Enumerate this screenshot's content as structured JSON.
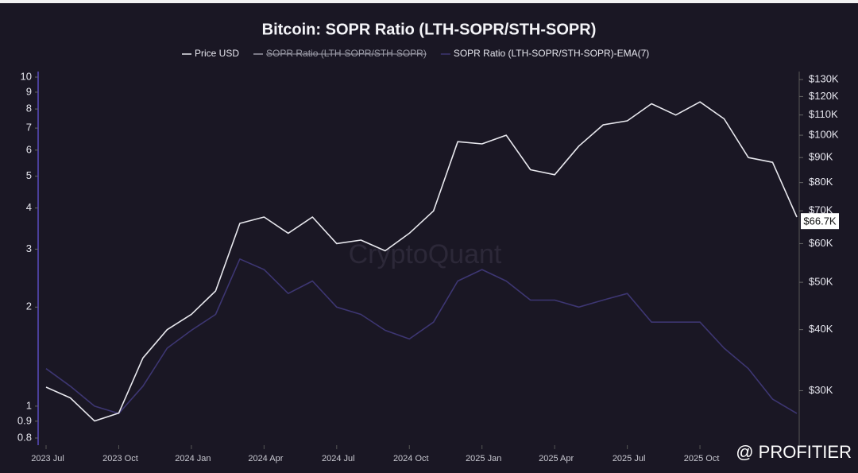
{
  "chart_data": {
    "type": "line",
    "title": "Bitcoin: SOPR Ratio (LTH-SOPR/STH-SOPR)",
    "x": [
      "2023-07",
      "2023-08",
      "2023-09",
      "2023-10",
      "2023-11",
      "2023-12",
      "2024-01",
      "2024-02",
      "2024-03",
      "2024-04",
      "2024-05",
      "2024-06",
      "2024-07",
      "2024-08",
      "2024-09",
      "2024-10",
      "2024-11",
      "2024-12",
      "2025-01",
      "2025-02",
      "2025-03",
      "2025-04",
      "2025-05",
      "2025-06",
      "2025-07",
      "2025-08",
      "2025-09",
      "2025-10",
      "2025-11",
      "2025-12",
      "2026-01",
      "2026-02"
    ],
    "xlim": [
      "2023-07",
      "2026-02"
    ],
    "xticks": [
      {
        "value": "2023-07",
        "label": "2023 Jul"
      },
      {
        "value": "2023-10",
        "label": "2023 Oct"
      },
      {
        "value": "2024-01",
        "label": "2024 Jan"
      },
      {
        "value": "2024-04",
        "label": "2024 Apr"
      },
      {
        "value": "2024-07",
        "label": "2024 Jul"
      },
      {
        "value": "2024-10",
        "label": "2024 Oct"
      },
      {
        "value": "2025-01",
        "label": "2025 Jan"
      },
      {
        "value": "2025-04",
        "label": "2025 Apr"
      },
      {
        "value": "2025-07",
        "label": "2025 Jul"
      },
      {
        "value": "2025-10",
        "label": "2025 Oct"
      }
    ],
    "ylim": [
      0.8,
      10
    ],
    "yticks": [
      0.8,
      0.9,
      1,
      2,
      3,
      4,
      5,
      6,
      7,
      8,
      9,
      10
    ],
    "y_log": true,
    "y2lim": [
      24000,
      131500
    ],
    "y2ticks": [
      {
        "value": 30000,
        "label": "$30K"
      },
      {
        "value": 40000,
        "label": "$40K"
      },
      {
        "value": 50000,
        "label": "$50K"
      },
      {
        "value": 60000,
        "label": "$60K"
      },
      {
        "value": 70000,
        "label": "$70K"
      },
      {
        "value": 80000,
        "label": "$80K"
      },
      {
        "value": 90000,
        "label": "$90K"
      },
      {
        "value": 100000,
        "label": "$100K"
      },
      {
        "value": 110000,
        "label": "$110K"
      },
      {
        "value": 120000,
        "label": "$120K"
      },
      {
        "value": 130000,
        "label": "$130K"
      }
    ],
    "y2_log": true,
    "series": [
      {
        "name": "Price USD",
        "color": "#e8e8ee",
        "axis": "y2",
        "values": [
          30500,
          29000,
          26000,
          27000,
          35000,
          40000,
          43000,
          48000,
          66000,
          68000,
          63000,
          68000,
          60000,
          61000,
          58000,
          63000,
          70000,
          97000,
          96000,
          100000,
          85000,
          83000,
          95000,
          105000,
          107000,
          116000,
          110000,
          117000,
          108000,
          90000,
          88000,
          68000
        ]
      },
      {
        "name": "SOPR Ratio (LTH-SOPR/STH-SOPR)-EMA(7)",
        "color": "#3d3672",
        "values": [
          1.3,
          1.15,
          1.0,
          0.95,
          1.15,
          1.5,
          1.7,
          1.9,
          2.8,
          2.6,
          2.2,
          2.4,
          2.0,
          1.9,
          1.7,
          1.6,
          1.8,
          2.4,
          2.6,
          2.4,
          2.1,
          2.1,
          2.0,
          2.1,
          2.2,
          1.8,
          1.8,
          1.8,
          1.5,
          1.3,
          1.05,
          0.95
        ]
      }
    ],
    "legend_hidden": [
      "SOPR Ratio (LTH-SOPR/STH-SOPR)"
    ],
    "last_price": {
      "value": 66700,
      "label": "$66.7K"
    },
    "watermark": "CryptoQuant",
    "credit": "@ PROFITIER"
  }
}
